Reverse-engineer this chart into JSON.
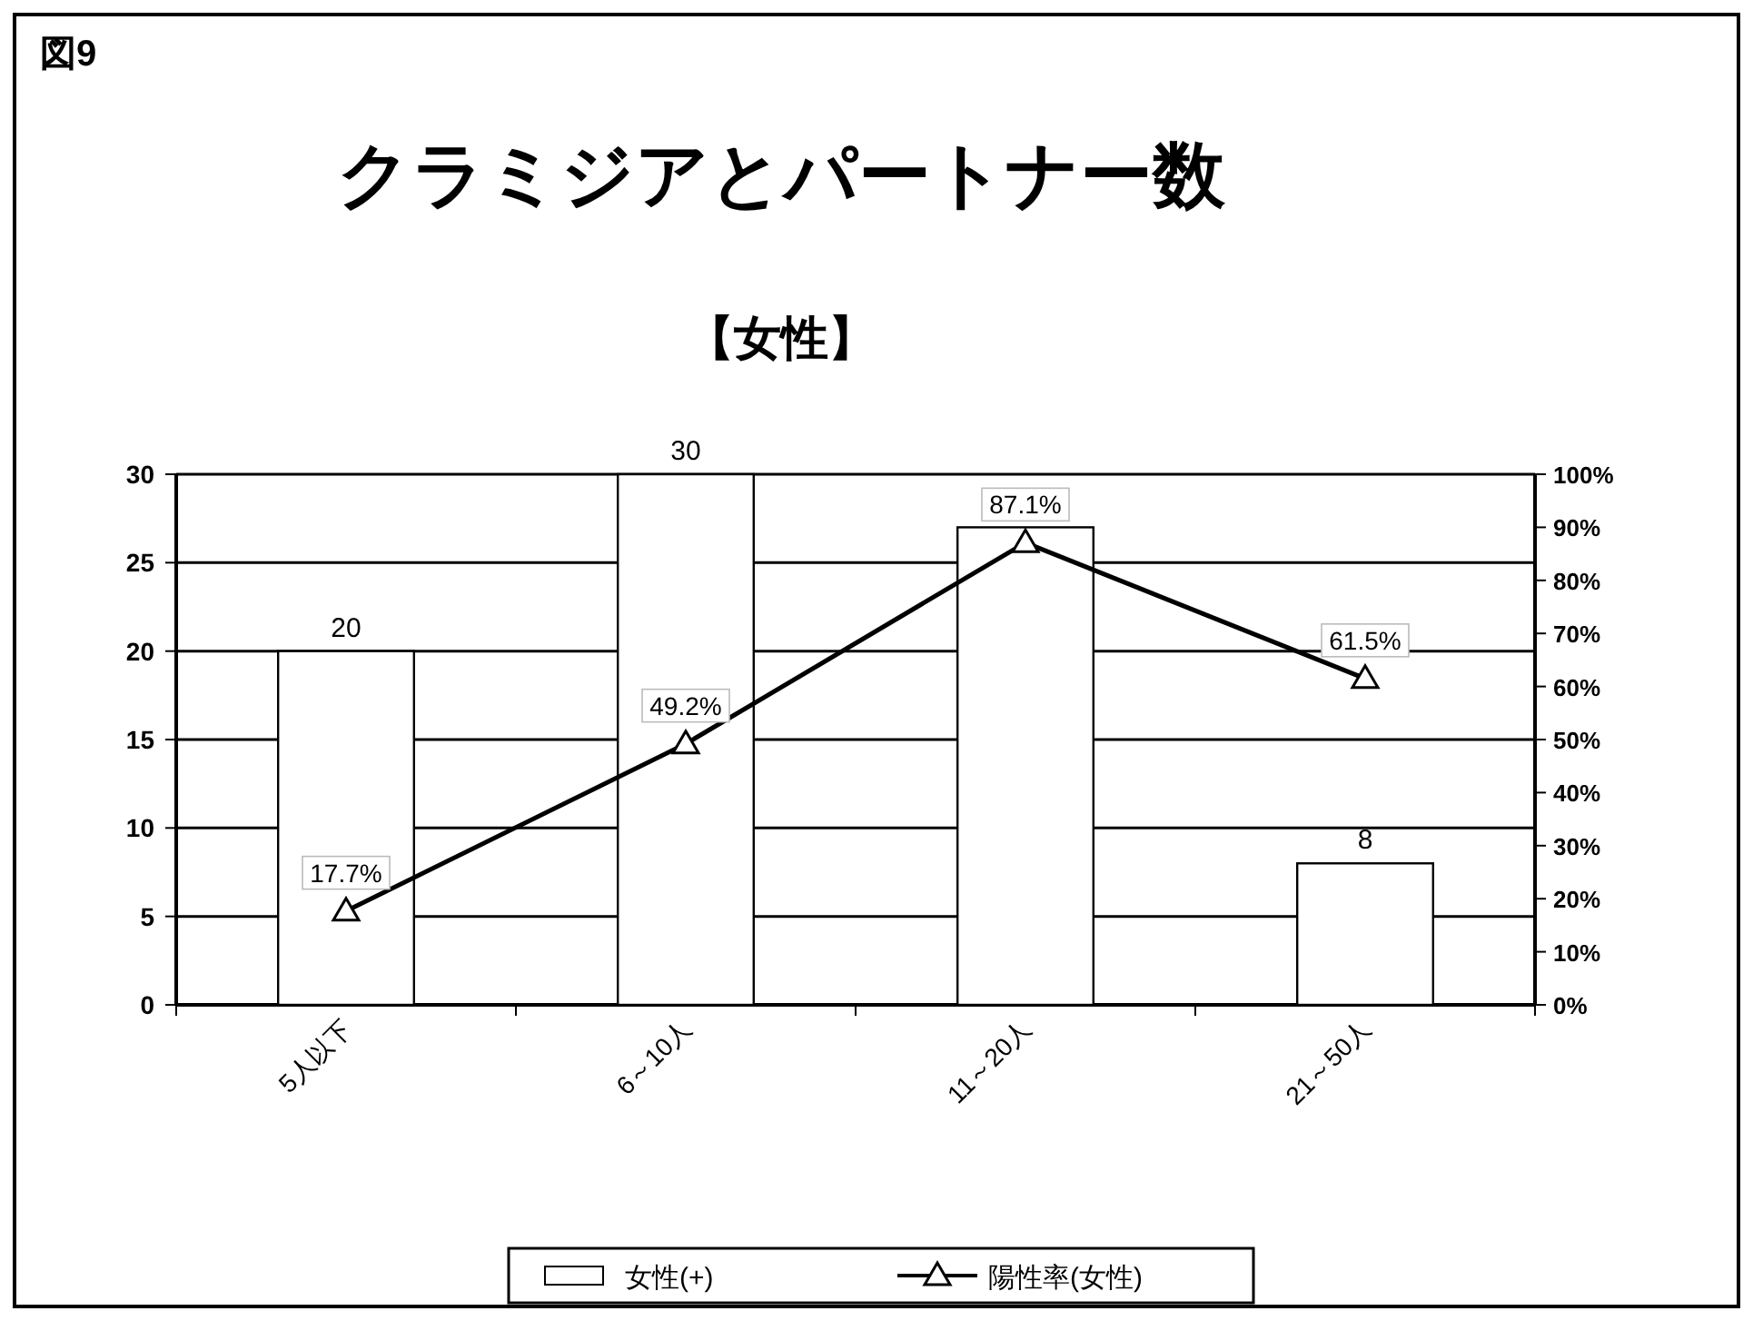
{
  "chart_data": {
    "type": "bar",
    "title": "クラミジアとパートナー数",
    "subtitle": "【女性】",
    "annotations": [
      "図9"
    ],
    "categories": [
      "5人以下",
      "6～10人",
      "11～20人",
      "21～50人"
    ],
    "series": [
      {
        "name": "女性(+)",
        "color": "#ffffff",
        "values": [
          20,
          30,
          27,
          8
        ],
        "value_labels": [
          "20",
          "30",
          null,
          "8"
        ]
      },
      {
        "name": "陽性率(女性)",
        "type": "line",
        "axis": "y2",
        "color": "#000000",
        "marker": "triangle",
        "values": [
          17.7,
          49.2,
          87.1,
          61.5
        ],
        "value_labels": [
          "17.7%",
          "49.2%",
          "87.1%",
          "61.5%"
        ]
      }
    ],
    "ylim": [
      0,
      30
    ],
    "yticks": [
      0,
      5,
      10,
      15,
      20,
      25,
      30
    ],
    "y2lim": [
      0,
      100
    ],
    "y2ticks": [
      {
        "value": 0,
        "label": "0%"
      },
      {
        "value": 10,
        "label": "10%"
      },
      {
        "value": 20,
        "label": "20%"
      },
      {
        "value": 30,
        "label": "30%"
      },
      {
        "value": 40,
        "label": "40%"
      },
      {
        "value": 50,
        "label": "50%"
      },
      {
        "value": 60,
        "label": "60%"
      },
      {
        "value": 70,
        "label": "70%"
      },
      {
        "value": 80,
        "label": "80%"
      },
      {
        "value": 90,
        "label": "90%"
      },
      {
        "value": 100,
        "label": "100%"
      }
    ],
    "grid": "y",
    "legend": "bottom"
  }
}
